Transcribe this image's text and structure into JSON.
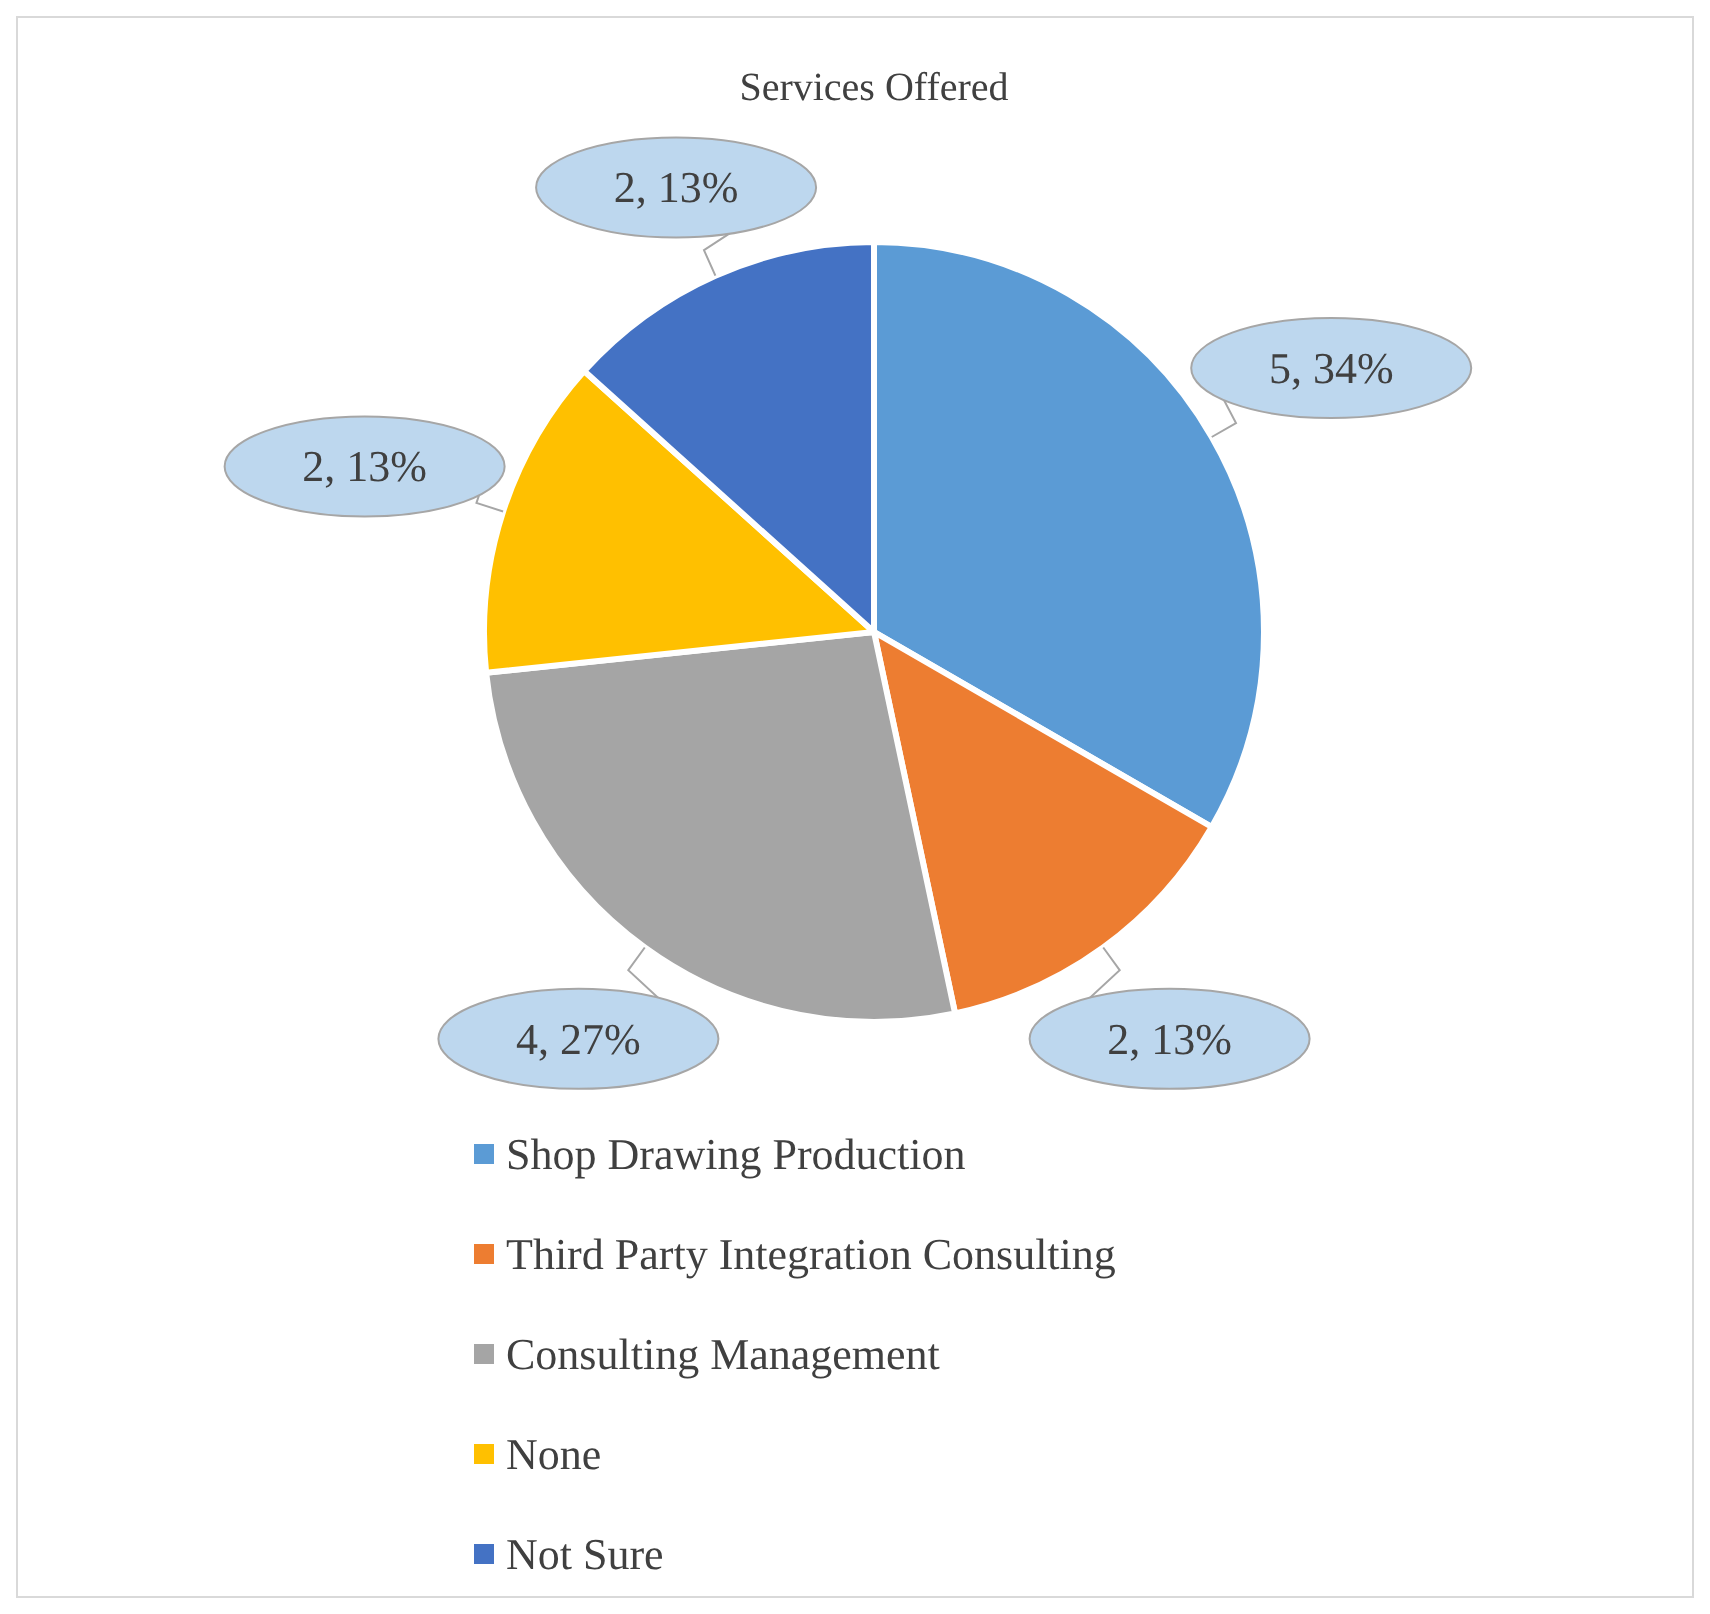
{
  "chart_data": {
    "type": "pie",
    "title": "Services Offered",
    "categories": [
      "Shop Drawing Production",
      "Third Party Integration Consulting",
      "Consulting Management",
      "None",
      "Not Sure"
    ],
    "values": [
      5,
      2,
      4,
      2,
      2
    ],
    "colors": [
      "#5b9bd5",
      "#ed7d31",
      "#a5a5a5",
      "#ffc000",
      "#4472c4"
    ],
    "value_labels": [
      "5, 34%",
      "2, 13%",
      "4, 27%",
      "2, 13%",
      "2, 13%"
    ],
    "legend": "bottom"
  }
}
